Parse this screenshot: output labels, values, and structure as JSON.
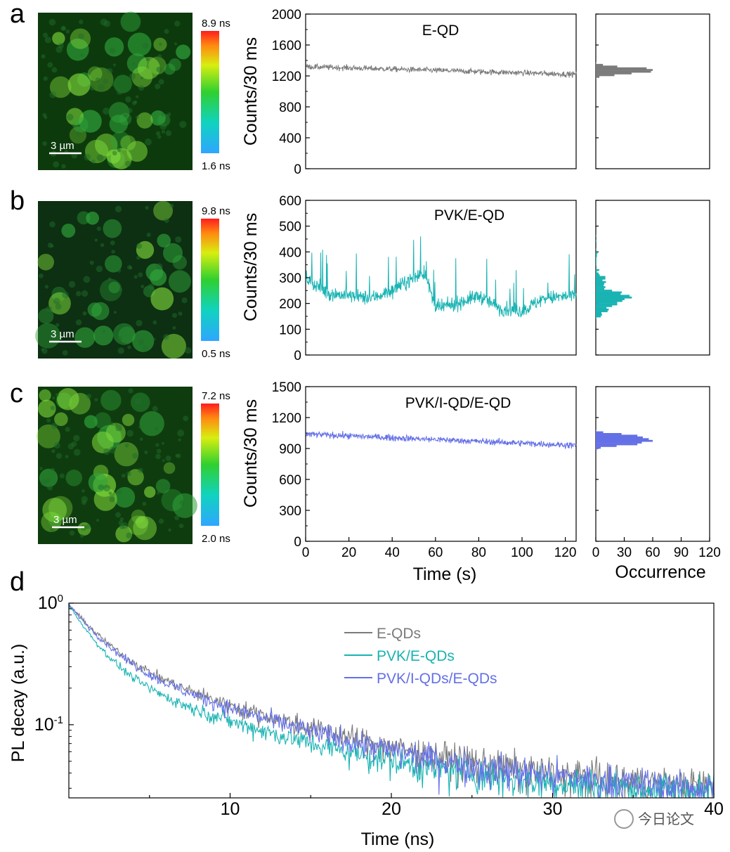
{
  "colors": {
    "grey": "#7b7b7b",
    "cyan": "#1ab3b3",
    "blue": "#6470e6",
    "map_green": "#1e8a1e"
  },
  "chart_data": [
    {
      "panel": "a",
      "type": "map",
      "scale_bar": "3 µm",
      "colorbar": {
        "max": "8.9 ns",
        "min": "1.6 ns"
      }
    },
    {
      "panel": "b",
      "type": "map",
      "scale_bar": "3 µm",
      "colorbar": {
        "max": "9.8 ns",
        "min": "0.5 ns"
      }
    },
    {
      "panel": "c",
      "type": "map",
      "scale_bar": "3 µm",
      "colorbar": {
        "max": "7.2 ns",
        "min": "2.0 ns"
      }
    },
    {
      "panel": "a",
      "type": "line",
      "title": "E-QD",
      "ylabel": "Counts/30 ms",
      "xlabel": "",
      "xlim": [
        0,
        125
      ],
      "ylim": [
        0,
        2000
      ],
      "yticks": [
        "0",
        "400",
        "800",
        "1200",
        "1600",
        "2000"
      ],
      "series": [
        {
          "name": "E-QD",
          "mean_start": 1320,
          "mean_end": 1220,
          "noise": 60
        }
      ],
      "histogram": {
        "peak_counts": 1270,
        "peak_occurrence": 60
      }
    },
    {
      "panel": "b",
      "type": "line",
      "title": "PVK/E-QD",
      "ylabel": "Counts/30 ms",
      "xlabel": "",
      "xlim": [
        0,
        125
      ],
      "ylim": [
        0,
        600
      ],
      "yticks": [
        "0",
        "100",
        "200",
        "300",
        "400",
        "500",
        "600"
      ],
      "series": [
        {
          "name": "PVK/E-QD",
          "segments": [
            [
              0,
              300
            ],
            [
              10,
              240
            ],
            [
              20,
              230
            ],
            [
              30,
              220
            ],
            [
              40,
              250
            ],
            [
              50,
              300
            ],
            [
              55,
              320
            ],
            [
              60,
              180
            ],
            [
              70,
              200
            ],
            [
              80,
              230
            ],
            [
              90,
              180
            ],
            [
              100,
              170
            ],
            [
              110,
              220
            ],
            [
              125,
              230
            ]
          ],
          "noise": 45
        }
      ],
      "histogram": {
        "peak_counts": 220,
        "peak_occurrence": 38
      }
    },
    {
      "panel": "c",
      "type": "line",
      "title": "PVK/I-QD/E-QD",
      "ylabel": "Counts/30 ms",
      "xlabel": "Time (s)",
      "xlim": [
        0,
        125
      ],
      "ylim": [
        0,
        1500
      ],
      "yticks": [
        "0",
        "300",
        "600",
        "900",
        "1200",
        "1500"
      ],
      "xticks": [
        "0",
        "20",
        "40",
        "60",
        "80",
        "100",
        "120"
      ],
      "series": [
        {
          "name": "PVK/I-QD/E-QD",
          "mean_start": 1040,
          "mean_end": 930,
          "noise": 50
        }
      ],
      "histogram": {
        "peak_counts": 980,
        "peak_occurrence": 60,
        "xlabel": "Occurrence",
        "xticks": [
          "0",
          "30",
          "60",
          "90",
          "120"
        ],
        "xlim": [
          0,
          120
        ]
      }
    },
    {
      "panel": "d",
      "type": "line",
      "scale": "log",
      "xlabel": "Time (ns)",
      "ylabel": "PL decay (a.u.)",
      "xlim": [
        0,
        40
      ],
      "ylim": [
        0.025,
        1.0
      ],
      "xticks": [
        "10",
        "20",
        "30",
        "40"
      ],
      "yticks": [
        {
          "base": "10",
          "exp": "0"
        },
        {
          "base": "10",
          "exp": "-1"
        }
      ],
      "series": [
        {
          "name": "E-QDs",
          "color": "#7b7b7b",
          "a1": 0.62,
          "tau1": 2.0,
          "a2": 0.33,
          "tau2": 9.5,
          "offset": 0.026
        },
        {
          "name": "PVK/E-QDs",
          "color": "#1ab3b3",
          "a1": 0.68,
          "tau1": 1.6,
          "a2": 0.26,
          "tau2": 8.5,
          "offset": 0.026
        },
        {
          "name": "PVK/I-QDs/E-QDs",
          "color": "#6470e6",
          "a1": 0.62,
          "tau1": 1.9,
          "a2": 0.33,
          "tau2": 9.0,
          "offset": 0.026
        }
      ]
    }
  ],
  "panel_labels": [
    "a",
    "b",
    "c",
    "d"
  ],
  "watermark": "今日论文"
}
